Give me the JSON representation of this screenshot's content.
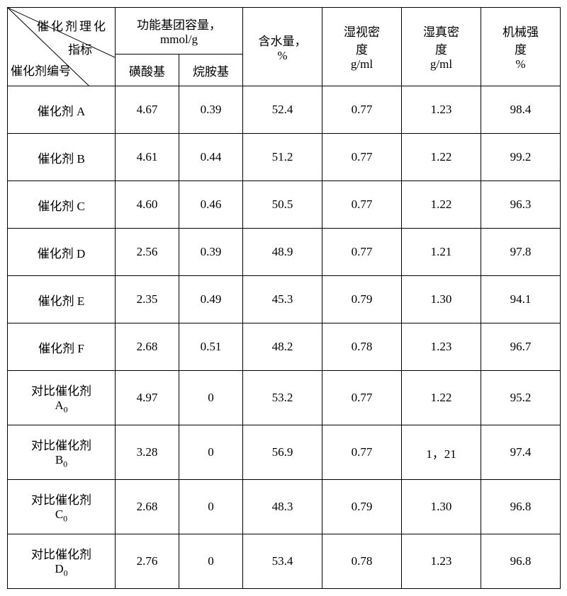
{
  "header": {
    "diag_top": "催化剂理化",
    "diag_mid": "指标",
    "diag_bot": "催化剂编号",
    "func_group": "功能基团容量，",
    "func_unit": "mmol/g",
    "sulfonic": "磺酸基",
    "alkylamine": "烷胺基",
    "water": "含水量，",
    "water_unit": "%",
    "wet_app": "湿视密",
    "wet_app2": "度",
    "wet_app_unit": "g/ml",
    "wet_true": "湿真密",
    "wet_true2": "度",
    "wet_true_unit": "g/ml",
    "mech": "机械强",
    "mech2": "度",
    "mech_unit": "%"
  },
  "rows": [
    {
      "name": "催化剂 A",
      "c1": "4.67",
      "c2": "0.39",
      "c3": "52.4",
      "c4": "0.77",
      "c5": "1.23",
      "c6": "98.4",
      "tall": false
    },
    {
      "name": "催化剂 B",
      "c1": "4.61",
      "c2": "0.44",
      "c3": "51.2",
      "c4": "0.77",
      "c5": "1.22",
      "c6": "99.2",
      "tall": false
    },
    {
      "name": "催化剂 C",
      "c1": "4.60",
      "c2": "0.46",
      "c3": "50.5",
      "c4": "0.77",
      "c5": "1.22",
      "c6": "96.3",
      "tall": false
    },
    {
      "name": "催化剂 D",
      "c1": "2.56",
      "c2": "0.39",
      "c3": "48.9",
      "c4": "0.77",
      "c5": "1.21",
      "c6": "97.8",
      "tall": false
    },
    {
      "name": "催化剂 E",
      "c1": "2.35",
      "c2": "0.49",
      "c3": "45.3",
      "c4": "0.79",
      "c5": "1.30",
      "c6": "94.1",
      "tall": false
    },
    {
      "name": "催化剂  F",
      "c1": "2.68",
      "c2": "0.51",
      "c3": "48.2",
      "c4": "0.78",
      "c5": "1.23",
      "c6": "96.7",
      "tall": false
    },
    {
      "name": "对比催化剂<br>A<span class=\"sub\">0</span>",
      "c1": "4.97",
      "c2": "0",
      "c3": "53.2",
      "c4": "0.77",
      "c5": "1.22",
      "c6": "95.2",
      "tall": true
    },
    {
      "name": "对比催化剂<br>B<span class=\"sub\">0</span>",
      "c1": "3.28",
      "c2": "0",
      "c3": "56.9",
      "c4": "0.77",
      "c5": "1，21",
      "c6": "97.4",
      "tall": true
    },
    {
      "name": "对比催化剂<br>C<span class=\"sub\">0</span>",
      "c1": "2.68",
      "c2": "0",
      "c3": "48.3",
      "c4": "0.79",
      "c5": "1.30",
      "c6": "96.8",
      "tall": true
    },
    {
      "name": "对比催化剂<br>D<span class=\"sub\">0</span>",
      "c1": "2.76",
      "c2": "0",
      "c3": "53.4",
      "c4": "0.78",
      "c5": "1.23",
      "c6": "96.8",
      "tall": true
    }
  ],
  "colwidths": [
    "152",
    "90",
    "90",
    "112",
    "112",
    "112",
    "112"
  ]
}
